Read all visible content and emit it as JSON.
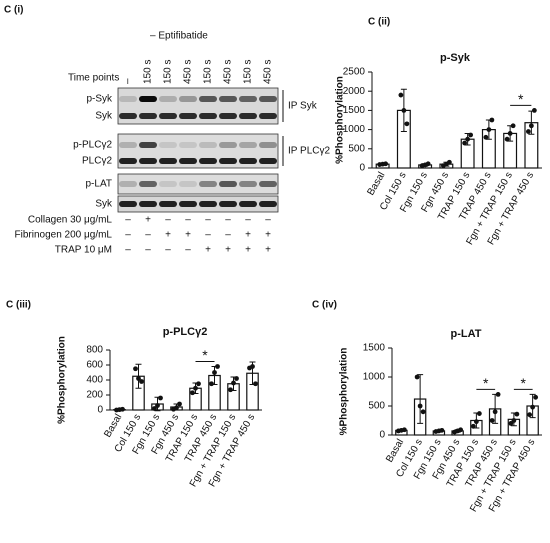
{
  "blot": {
    "panel": "C (i)",
    "condition": "– Eptifibatide",
    "time_label": "Time points",
    "lanes": [
      "–",
      "150 s",
      "150 s",
      "450 s",
      "150 s",
      "450 s",
      "150 s",
      "450 s"
    ],
    "rows": [
      "p-Syk",
      "Syk",
      "p-PLCγ2",
      "PLCγ2",
      "p-LAT",
      "Syk"
    ],
    "ip_labels": [
      "IP Syk",
      "IP PLCγ2"
    ],
    "treatments": [
      {
        "name": "Collagen 30 μg/mL",
        "signs": [
          "–",
          "+",
          "–",
          "–",
          "–",
          "–",
          "–",
          "–"
        ]
      },
      {
        "name": "Fibrinogen 200 μg/mL",
        "signs": [
          "–",
          "–",
          "+",
          "+",
          "–",
          "–",
          "+",
          "+"
        ]
      },
      {
        "name": "TRAP 10 μM",
        "signs": [
          "–",
          "–",
          "–",
          "–",
          "+",
          "+",
          "+",
          "+"
        ]
      }
    ]
  },
  "chart_data": [
    {
      "type": "bar",
      "panel": "C (ii)",
      "title": "p-Syk",
      "ylabel": "%Phosphorylation",
      "categories": [
        "Basal",
        "Col 150 s",
        "Fgn 150 s",
        "Fgn 450 s",
        "TRAP 150 s",
        "TRAP 450 s",
        "Fgn + TRAP 150 s",
        "Fgn + TRAP 450 s"
      ],
      "values": [
        100,
        1500,
        80,
        100,
        750,
        1000,
        900,
        1180
      ],
      "errors": [
        10,
        550,
        30,
        50,
        150,
        250,
        200,
        300
      ],
      "points": [
        [
          90,
          100,
          110
        ],
        [
          1900,
          1500,
          1150
        ],
        [
          60,
          80,
          110
        ],
        [
          60,
          100,
          150
        ],
        [
          650,
          750,
          860
        ],
        [
          800,
          1000,
          1250
        ],
        [
          750,
          900,
          1100
        ],
        [
          950,
          1100,
          1500
        ]
      ],
      "ylim": [
        0,
        2500
      ],
      "yticks": [
        0,
        500,
        1000,
        1500,
        2000,
        2500
      ],
      "color": "#ffffff",
      "annotations": [
        {
          "text": "*",
          "between": [
            6,
            7
          ]
        }
      ]
    },
    {
      "type": "bar",
      "panel": "C (iii)",
      "title": "p-PLCγ2",
      "ylabel": "%Phosphorylation",
      "categories": [
        "Basal",
        "Col 150 s",
        "Fgn 150 s",
        "Fgn 450 s",
        "TRAP 150 s",
        "TRAP 450 s",
        "Fgn + TRAP 150 s",
        "Fgn + TRAP 450 s"
      ],
      "values": [
        5,
        450,
        80,
        40,
        290,
        460,
        350,
        490
      ],
      "errors": [
        3,
        160,
        90,
        40,
        70,
        120,
        90,
        150
      ],
      "points": [
        [
          0,
          5,
          10
        ],
        [
          550,
          420,
          380
        ],
        [
          20,
          60,
          160
        ],
        [
          10,
          30,
          80
        ],
        [
          230,
          290,
          350
        ],
        [
          350,
          500,
          580
        ],
        [
          270,
          360,
          420
        ],
        [
          560,
          580,
          350
        ]
      ],
      "ylim": [
        0,
        800
      ],
      "yticks": [
        0,
        200,
        400,
        600,
        800
      ],
      "color": "#ffffff",
      "annotations": [
        {
          "text": "*",
          "between": [
            4,
            5
          ]
        }
      ]
    },
    {
      "type": "bar",
      "panel": "C (iv)",
      "title": "p-LAT",
      "ylabel": "%Phosphorylation",
      "categories": [
        "Basal",
        "Col 150 s",
        "Fgn 150 s",
        "Fgn 450 s",
        "TRAP 150 s",
        "TRAP 450 s",
        "Fgn + TRAP 150 s",
        "Fgn + TRAP 450 s"
      ],
      "values": [
        80,
        620,
        70,
        70,
        250,
        450,
        270,
        500
      ],
      "errors": [
        10,
        420,
        15,
        20,
        130,
        250,
        110,
        200
      ],
      "points": [
        [
          70,
          80,
          90
        ],
        [
          1000,
          500,
          400
        ],
        [
          60,
          70,
          80
        ],
        [
          50,
          70,
          90
        ],
        [
          150,
          230,
          370
        ],
        [
          250,
          400,
          700
        ],
        [
          200,
          250,
          360
        ],
        [
          350,
          480,
          650
        ]
      ],
      "ylim": [
        0,
        1500
      ],
      "yticks": [
        0,
        500,
        1000,
        1500
      ],
      "color": "#ffffff",
      "annotations": [
        {
          "text": "*",
          "between": [
            4,
            5
          ]
        },
        {
          "text": "*",
          "between": [
            6,
            7
          ]
        }
      ]
    }
  ]
}
